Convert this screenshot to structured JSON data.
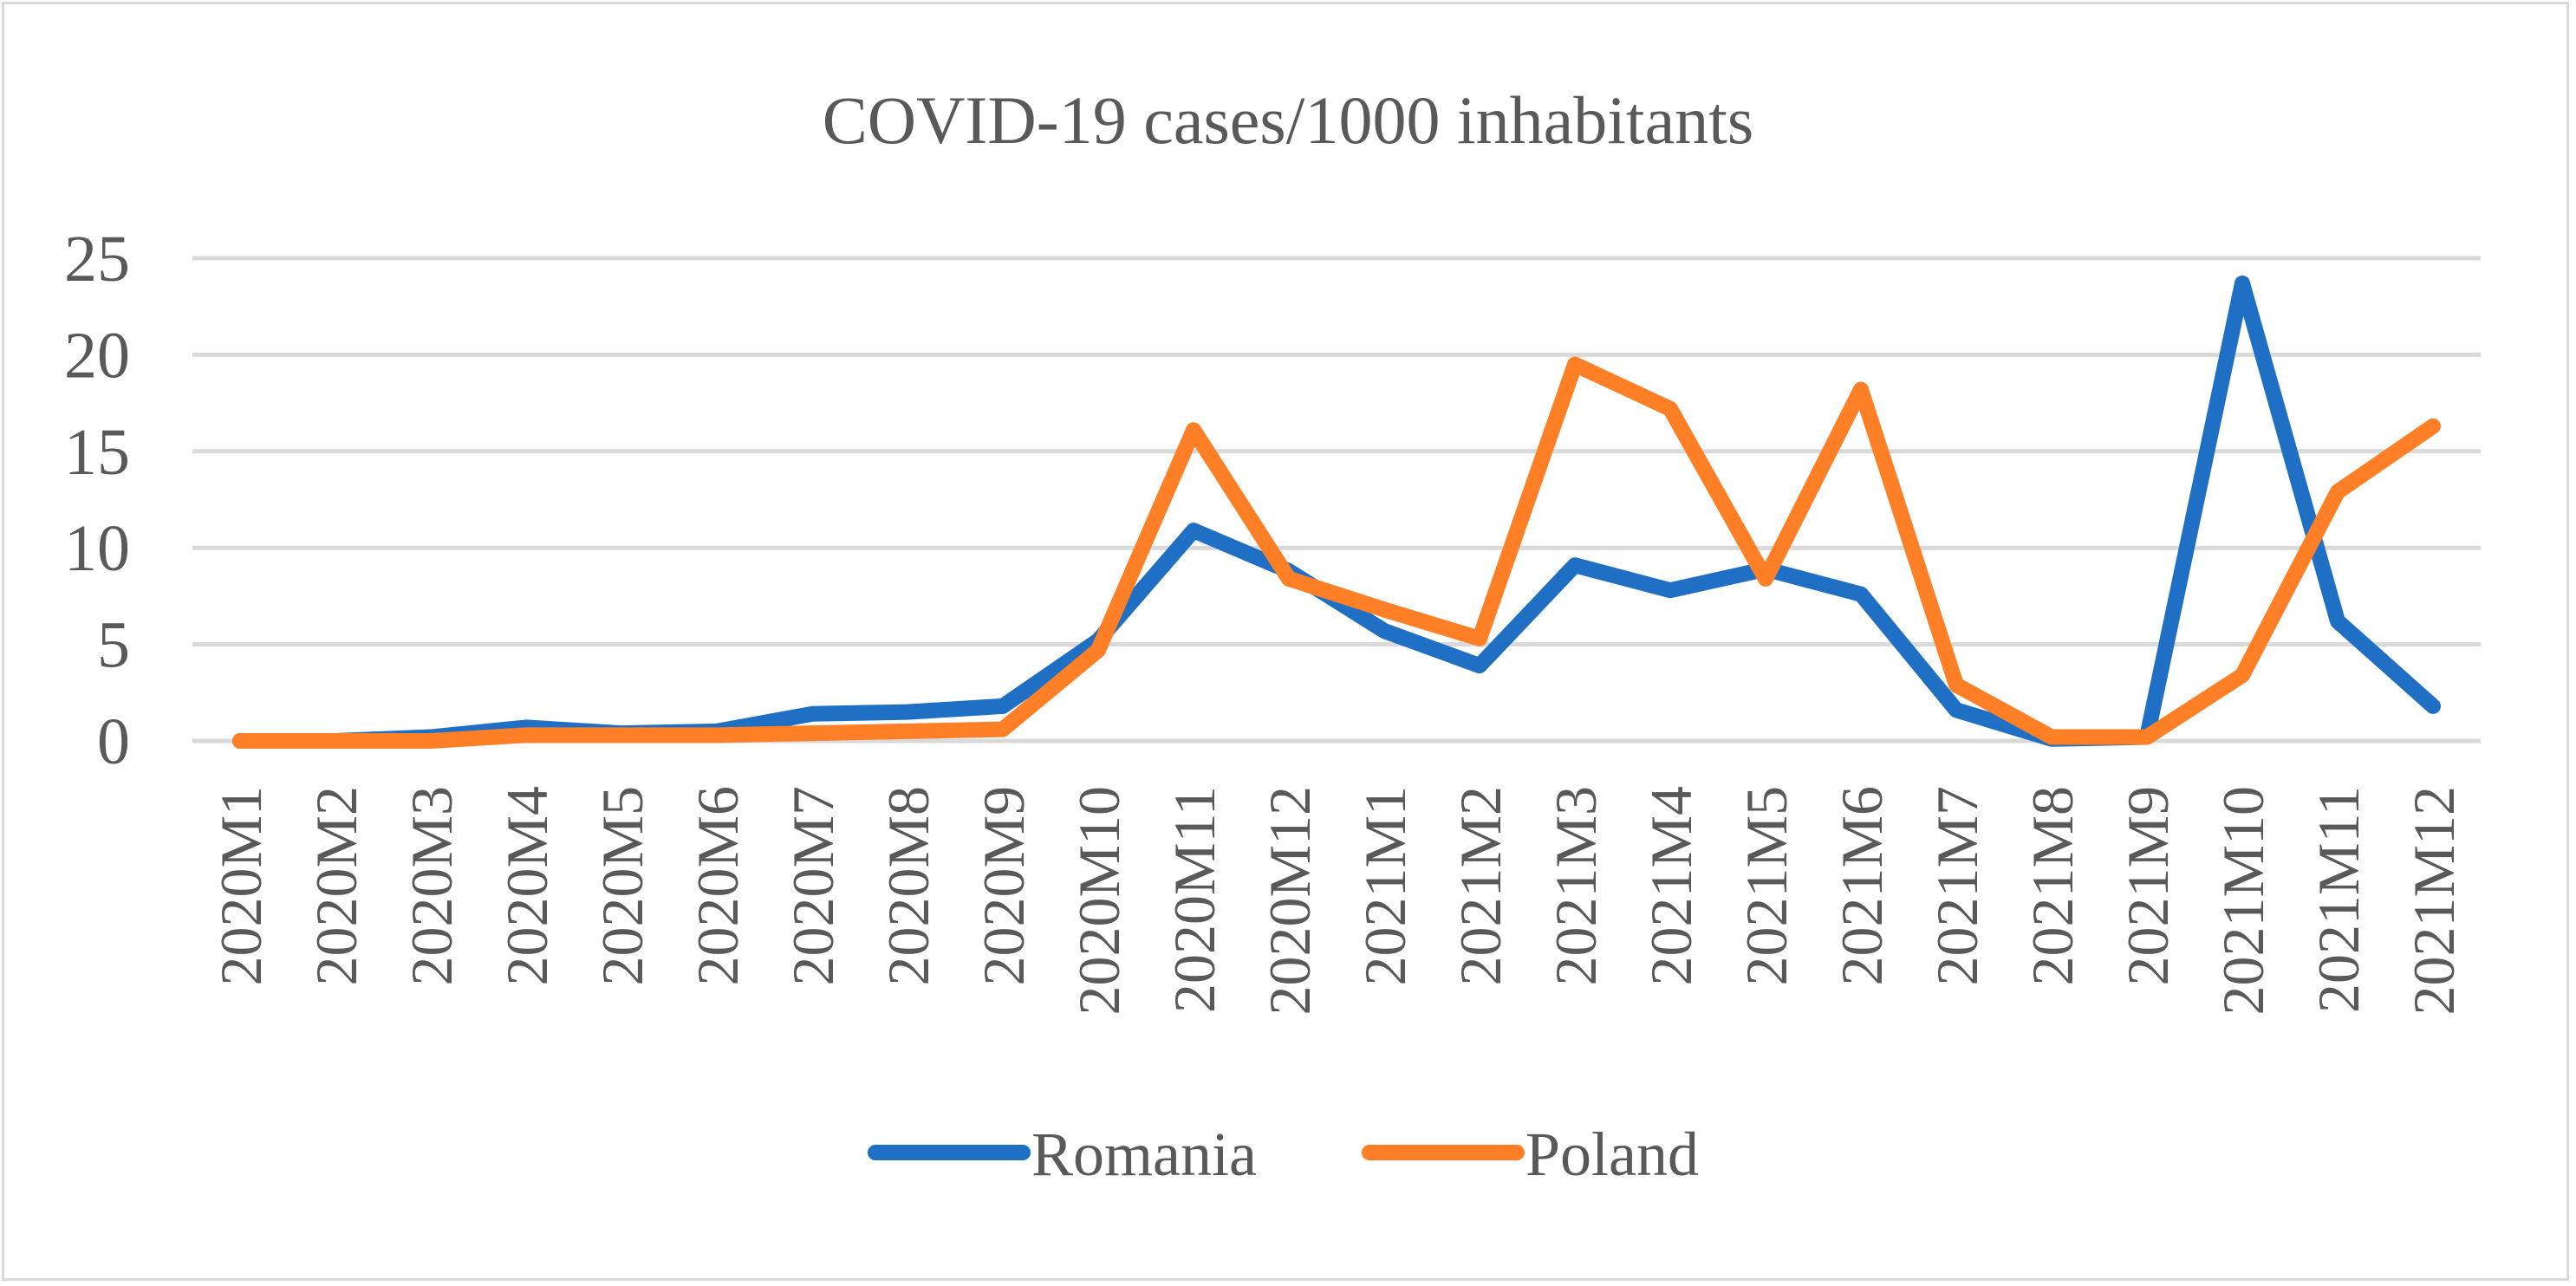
{
  "chart_data": {
    "type": "line",
    "title": "COVID-19 cases/1000 inhabitants",
    "xlabel": "",
    "ylabel": "",
    "ylim": [
      0,
      25
    ],
    "yticks": [
      "0",
      "5",
      "10",
      "15",
      "20",
      "25"
    ],
    "grid": true,
    "legend_position": "bottom",
    "categories": [
      "2020M1",
      "2020M2",
      "2020M3",
      "2020M4",
      "2020M5",
      "2020M6",
      "2020M7",
      "2020M8",
      "2020M9",
      "2020M10",
      "2020M11",
      "2020M12",
      "2021M1",
      "2021M2",
      "2021M3",
      "2021M4",
      "2021M5",
      "2021M6",
      "2021M7",
      "2021M8",
      "2021M9",
      "2021M10",
      "2021M11",
      "2021M12"
    ],
    "series": [
      {
        "name": "Romania",
        "color": "#1f6fc5",
        "values": [
          0,
          0,
          0.2,
          0.7,
          0.4,
          0.5,
          1.4,
          1.5,
          1.8,
          5.2,
          10.9,
          8.8,
          5.7,
          3.9,
          9.1,
          7.8,
          8.9,
          7.6,
          1.6,
          0.1,
          0.2,
          23.7,
          6.2,
          1.8
        ]
      },
      {
        "name": "Poland",
        "color": "#ff7f27",
        "values": [
          0,
          0,
          0,
          0.3,
          0.3,
          0.3,
          0.4,
          0.5,
          0.6,
          4.7,
          16.1,
          8.4,
          6.8,
          5.3,
          19.5,
          17.2,
          8.4,
          18.2,
          2.9,
          0.2,
          0.2,
          3.4,
          12.9,
          16.3
        ]
      }
    ]
  }
}
